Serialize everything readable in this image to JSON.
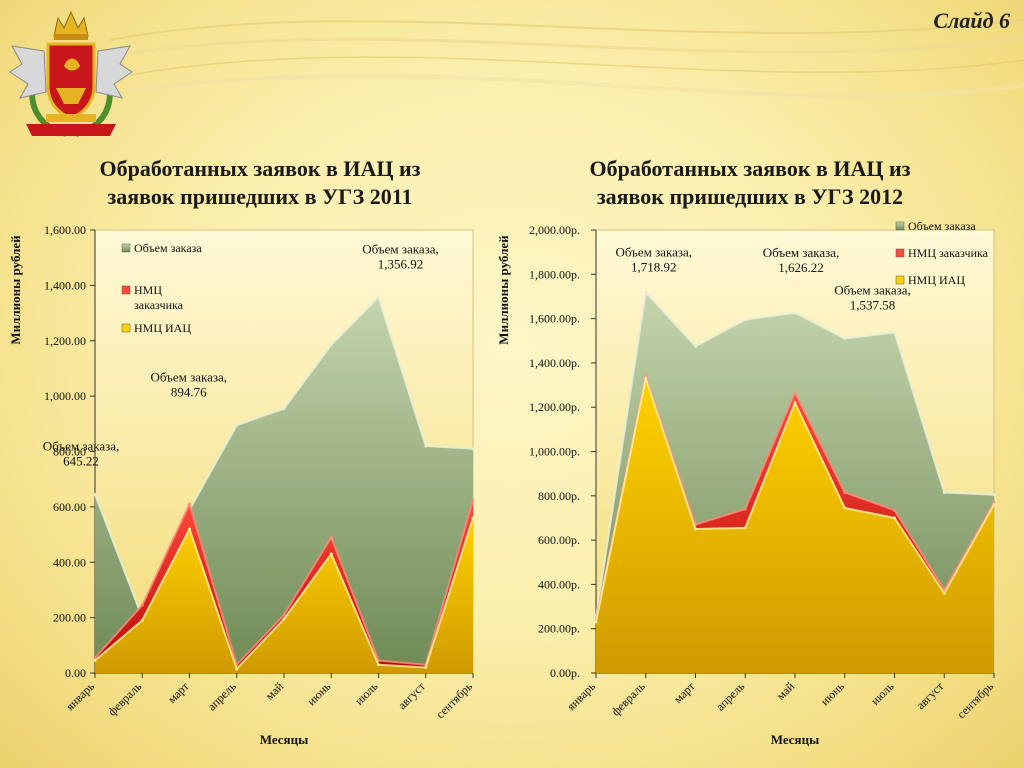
{
  "slide": {
    "label": "Слайд 6"
  },
  "emblem": {
    "icon": "coat-of-arms-icon"
  },
  "colors": {
    "order_top": "#c5d4ad",
    "order_bottom": "#6f8a55",
    "customer_top": "#ff4a3a",
    "customer_bottom": "#b40808",
    "iac_top": "#ffd200",
    "iac_bottom": "#d09a00",
    "panel_top": "#fff9d6",
    "panel_bottom": "#f3dc78"
  },
  "chart_data": [
    {
      "type": "area",
      "title_line1": "Обработанных заявок в ИАЦ из",
      "title_line2": "заявок пришедших в УГЗ 2011",
      "xlabel": "Месяцы",
      "ylabel": "Миллионы рублей",
      "ylim": [
        0,
        1600
      ],
      "yticks": [
        0,
        200,
        400,
        600,
        800,
        1000,
        1200,
        1400,
        1600
      ],
      "ytick_labels": [
        "0.00",
        "200.00",
        "400.00",
        "600.00",
        "800.00",
        "1,000.00",
        "1,200.00",
        "1,400.00",
        "1,600.00"
      ],
      "categories": [
        "январь",
        "февраль",
        "март",
        "апрель",
        "май",
        "июнь",
        "июль",
        "август",
        "сентябрь"
      ],
      "series": [
        {
          "name": "Объем заказа",
          "values": [
            645.22,
            200,
            590,
            894.76,
            955,
            1185,
            1356.92,
            820,
            810
          ]
        },
        {
          "name": "НМЦ заказчика",
          "values": [
            55,
            245,
            610,
            30,
            210,
            490,
            45,
            30,
            625
          ]
        },
        {
          "name": "НМЦ ИАЦ",
          "values": [
            45,
            190,
            520,
            15,
            195,
            430,
            30,
            20,
            560
          ]
        }
      ],
      "legend": [
        "Объем заказа",
        "НМЦ заказчика",
        "НМЦ ИАЦ"
      ],
      "annotations": [
        {
          "index": 0,
          "line1": "Объем заказа,",
          "line2": "645.22"
        },
        {
          "index": 3,
          "line1": "Объем заказа,",
          "line2": "894.76"
        },
        {
          "index": 6,
          "line1": "Объем заказа,",
          "line2": "1,356.92"
        }
      ]
    },
    {
      "type": "area",
      "title_line1": "Обработанных заявок в ИАЦ из",
      "title_line2": "заявок пришедших в УГЗ 2012",
      "xlabel": "Месяцы",
      "ylabel": "Миллионы рублей",
      "ylim": [
        0,
        2000
      ],
      "yticks": [
        0,
        200,
        400,
        600,
        800,
        1000,
        1200,
        1400,
        1600,
        1800,
        2000
      ],
      "ytick_labels": [
        "0.00р.",
        "200.00р.",
        "400.00р.",
        "600.00р.",
        "800.00р.",
        "1,000.00р.",
        "1,200.00р.",
        "1,400.00р.",
        "1,600.00р.",
        "1,800.00р.",
        "2,000.00р."
      ],
      "categories": [
        "январь",
        "февраль",
        "март",
        "апрель",
        "май",
        "июнь",
        "июль",
        "август",
        "сентябрь"
      ],
      "series": [
        {
          "name": "Объем заказа",
          "values": [
            250,
            1718.92,
            1475,
            1595,
            1626.22,
            1510,
            1537.58,
            815,
            805
          ]
        },
        {
          "name": "НМЦ заказчика",
          "values": [
            240,
            1340,
            670,
            740,
            1265,
            815,
            735,
            375,
            770
          ]
        },
        {
          "name": "НМЦ ИАЦ",
          "values": [
            230,
            1330,
            650,
            655,
            1220,
            745,
            700,
            360,
            760
          ]
        }
      ],
      "legend": [
        "Объем заказа",
        "НМЦ заказчика",
        "НМЦ ИАЦ"
      ],
      "annotations": [
        {
          "index": 1,
          "line1": "Объем заказа,",
          "line2": "1,718.92"
        },
        {
          "index": 4,
          "line1": "Объем заказа,",
          "line2": "1,626.22"
        },
        {
          "index": 6,
          "line1": "Объем заказа,",
          "line2": "1,537.58"
        }
      ]
    }
  ]
}
